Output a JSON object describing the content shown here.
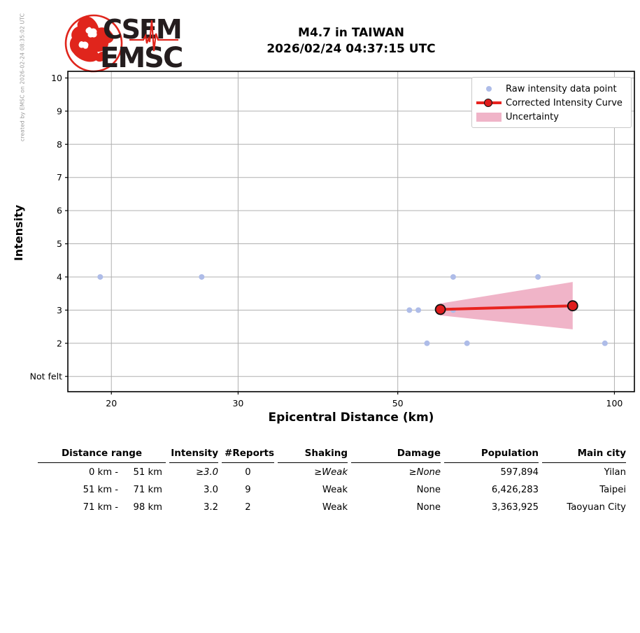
{
  "creator_note": "created by EMSC on 2026-02-24 08:35:02 UTC",
  "logo": {
    "line1": "CSEM",
    "line2": "EMSC",
    "red": "#e0251c",
    "dark": "#241d1e"
  },
  "title": {
    "line1": "M4.7 in TAIWAN",
    "line2": "2026/02/24 04:37:15 UTC"
  },
  "chart_data": {
    "type": "scatter",
    "title": "M4.7 in TAIWAN 2026/02/24 04:37:15 UTC",
    "xlabel": "Epicentral Distance (km)",
    "ylabel": "Intensity",
    "x_scale": "log",
    "xlim": [
      17.4,
      106.6
    ],
    "ylim": [
      0.54,
      10.2
    ],
    "xticks": [
      20,
      30,
      50,
      100
    ],
    "yticks": [
      {
        "value": 10,
        "label": "10"
      },
      {
        "value": 9,
        "label": "9"
      },
      {
        "value": 8,
        "label": "8"
      },
      {
        "value": 7,
        "label": "7"
      },
      {
        "value": 6,
        "label": "6"
      },
      {
        "value": 5,
        "label": "5"
      },
      {
        "value": 4,
        "label": "4"
      },
      {
        "value": 3,
        "label": "3"
      },
      {
        "value": 2,
        "label": "2"
      },
      {
        "value": 1,
        "label": "Not felt"
      }
    ],
    "grid": true,
    "legend_position": "upper right",
    "series": [
      {
        "name": "Raw intensity data point",
        "type": "scatter",
        "points": [
          [
            19.3,
            4
          ],
          [
            26.7,
            4
          ],
          [
            51.9,
            3
          ],
          [
            53.4,
            3
          ],
          [
            54.9,
            2
          ],
          [
            59.7,
            4
          ],
          [
            59.7,
            3
          ],
          [
            62.4,
            2
          ],
          [
            78.3,
            4
          ],
          [
            97.0,
            2
          ]
        ]
      },
      {
        "name": "Corrected Intensity Curve",
        "type": "line",
        "points": [
          [
            57.3,
            3.02
          ],
          [
            87.5,
            3.13
          ]
        ]
      },
      {
        "name": "Uncertainty",
        "type": "band",
        "x": [
          57.3,
          87.5
        ],
        "upper": [
          3.2,
          3.85
        ],
        "lower": [
          2.84,
          2.42
        ]
      }
    ],
    "colors": {
      "raw_point": "#aebce8",
      "curve": "#e82420",
      "marker_fill": "#df1d1d",
      "marker_edge": "#111111",
      "band": "#f0b4c8",
      "grid": "#b0b0b0",
      "axis": "#000000"
    }
  },
  "table": {
    "headers": [
      "Distance range",
      "Intensity",
      "#Reports",
      "Shaking",
      "Damage",
      "Population",
      "Main city"
    ],
    "rows": [
      {
        "from": "0 km -",
        "to": "51 km",
        "intensity": "≥3.0",
        "reports": "0",
        "shaking": "≥Weak",
        "damage": "≥None",
        "population": "597,894",
        "city": "Yilan"
      },
      {
        "from": "51 km -",
        "to": "71 km",
        "intensity": "3.0",
        "reports": "9",
        "shaking": "Weak",
        "damage": "None",
        "population": "6,426,283",
        "city": "Taipei"
      },
      {
        "from": "71 km -",
        "to": "98 km",
        "intensity": "3.2",
        "reports": "2",
        "shaking": "Weak",
        "damage": "None",
        "population": "3,363,925",
        "city": "Taoyuan City"
      }
    ]
  }
}
